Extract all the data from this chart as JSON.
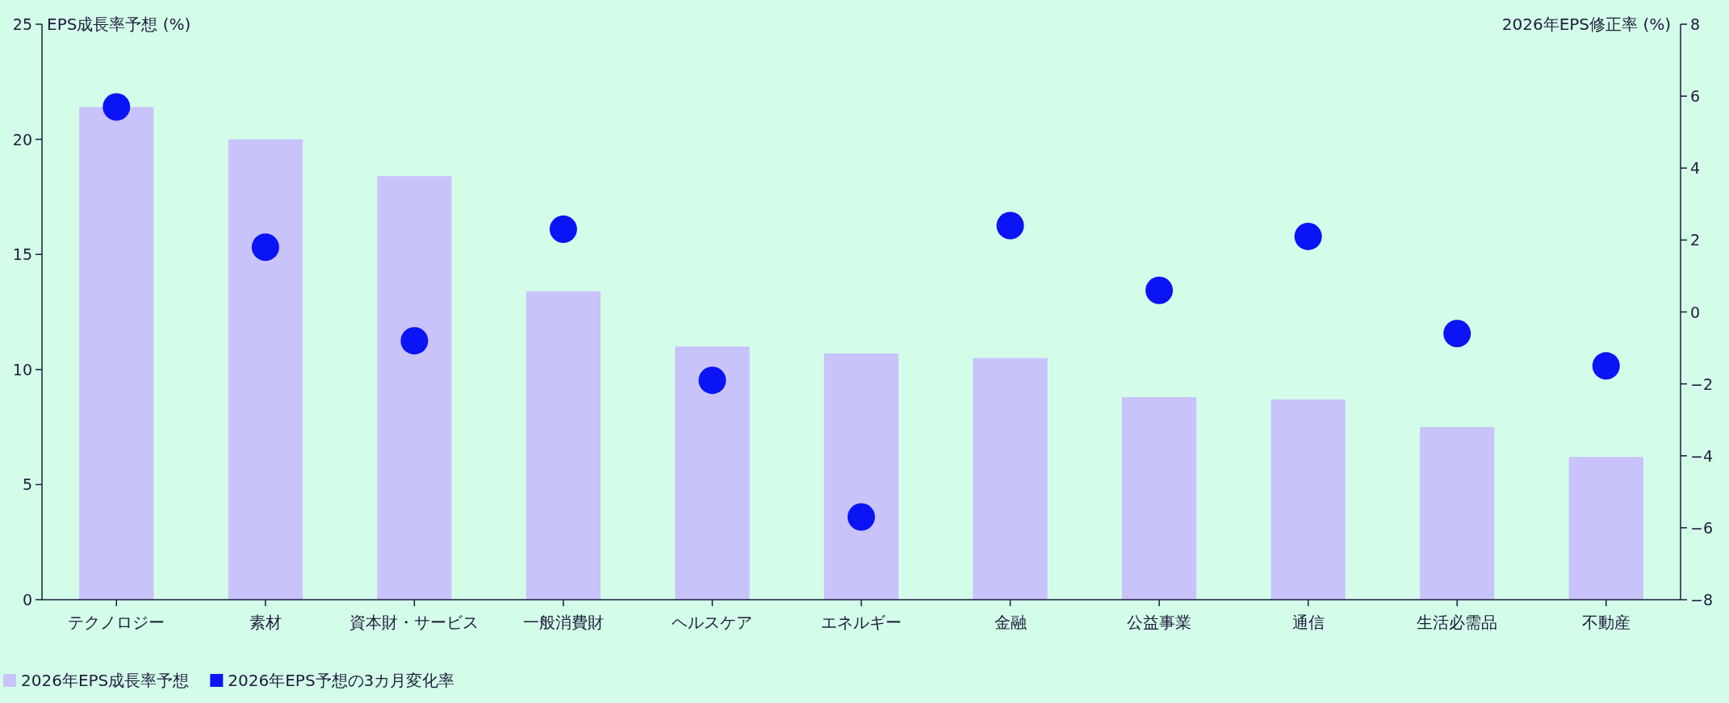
{
  "chart_data": {
    "type": "bar",
    "ylabel": "EPS成長率予想 (%)",
    "y2label": "2026年EPS修正率 (%)",
    "categories": [
      "テクノロジー",
      "素材",
      "資本財・サービス",
      "一般消費財",
      "ヘルスケア",
      "エネルギー",
      "金融",
      "公益事業",
      "通信",
      "生活必需品",
      "不動産"
    ],
    "series": [
      {
        "name": "2026年EPS成長率予想",
        "type": "bar",
        "color": "#c9c3fb",
        "values": [
          21.4,
          20.0,
          18.4,
          13.4,
          11.0,
          10.7,
          10.5,
          8.8,
          8.7,
          7.5,
          6.2
        ]
      },
      {
        "name": "2026年EPS予想の3カ月変化率",
        "type": "scatter",
        "axis": "y2",
        "marker": "circle",
        "color": "#0a14f5",
        "values": [
          5.7,
          1.8,
          -0.8,
          2.3,
          -1.9,
          -5.7,
          2.4,
          0.6,
          2.1,
          -0.6,
          -1.5
        ]
      }
    ],
    "ylim": [
      0,
      25
    ],
    "yticks": [
      0,
      5,
      10,
      15,
      20,
      25
    ],
    "y2lim": [
      -8,
      8
    ],
    "y2ticks": [
      -8,
      -6,
      -4,
      -2,
      0,
      2,
      4,
      6,
      8
    ],
    "grid": false,
    "legend": "bottom left"
  }
}
